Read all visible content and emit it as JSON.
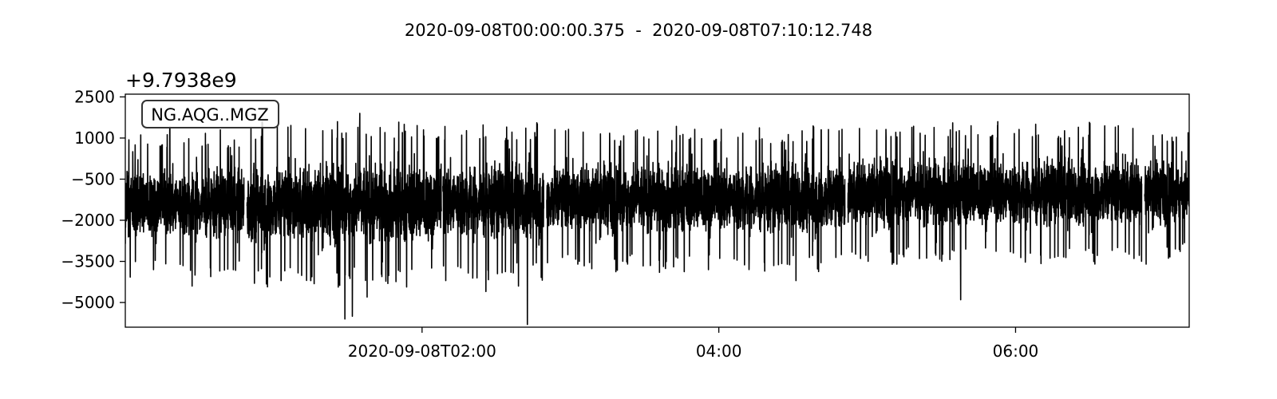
{
  "title": "2020-09-08T00:00:00.375  -  2020-09-08T07:10:12.748",
  "chart_data": {
    "type": "line",
    "title": "2020-09-08T00:00:00.375  -  2020-09-08T07:10:12.748",
    "trace_label": "NG.AQG..MGZ",
    "y_offset_label": "+9.7938e9",
    "xlabel": "",
    "ylabel": "",
    "x_start": "2020-09-08T00:00:00.375",
    "x_end": "2020-09-08T07:10:12.748",
    "xlim_hours": [
      0,
      7.1702
    ],
    "ylim": [
      -5900,
      2600
    ],
    "y_ticks": [
      2500,
      1000,
      -500,
      -2000,
      -3500,
      -5000
    ],
    "y_tick_labels": [
      "2500",
      "1000",
      "−500",
      "−2000",
      "−3500",
      "−5000"
    ],
    "x_ticks_hours": [
      2,
      4,
      6
    ],
    "x_tick_labels": [
      "2020-09-08T02:00",
      "04:00",
      "06:00"
    ],
    "series": [
      {
        "color": "#000000",
        "segments": [
          {
            "start_hour": 0.0,
            "end_hour": 0.8,
            "mean": -1400,
            "low": -3400,
            "high": 300
          },
          {
            "start_hour": 0.82,
            "end_hour": 2.13,
            "mean": -1400,
            "low": -3600,
            "high": 600
          },
          {
            "start_hour": 2.14,
            "end_hour": 2.82,
            "mean": -1300,
            "low": -3500,
            "high": 500
          },
          {
            "start_hour": 2.84,
            "end_hour": 4.85,
            "mean": -1200,
            "low": -3300,
            "high": 400
          },
          {
            "start_hour": 4.87,
            "end_hour": 6.85,
            "mean": -1000,
            "low": -3100,
            "high": 500
          },
          {
            "start_hour": 6.87,
            "end_hour": 7.17,
            "mean": -1000,
            "low": -2900,
            "high": 400
          }
        ],
        "spikes": [
          {
            "hour": 0.03,
            "value": -2600
          },
          {
            "hour": 0.05,
            "value": 500
          },
          {
            "hour": 0.19,
            "value": -3800
          },
          {
            "hour": 0.3,
            "value": 1400
          },
          {
            "hour": 0.45,
            "value": -4400
          },
          {
            "hour": 0.48,
            "value": 300
          },
          {
            "hour": 0.64,
            "value": 1300
          },
          {
            "hour": 0.87,
            "value": -4300
          },
          {
            "hour": 1.05,
            "value": -4200
          },
          {
            "hour": 1.25,
            "value": -4200
          },
          {
            "hour": 1.43,
            "value": 1600
          },
          {
            "hour": 1.48,
            "value": -5600
          },
          {
            "hour": 1.53,
            "value": -5500
          },
          {
            "hour": 1.58,
            "value": 1900
          },
          {
            "hour": 1.63,
            "value": -4800
          },
          {
            "hour": 1.75,
            "value": 1200
          },
          {
            "hour": 1.88,
            "value": 1500
          },
          {
            "hour": 2.01,
            "value": 1300
          },
          {
            "hour": 2.16,
            "value": -4200
          },
          {
            "hour": 2.37,
            "value": -4100
          },
          {
            "hour": 2.43,
            "value": -4600
          },
          {
            "hour": 2.57,
            "value": 1400
          },
          {
            "hour": 2.65,
            "value": -4400
          },
          {
            "hour": 2.71,
            "value": -5800
          },
          {
            "hour": 2.76,
            "value": 1200
          },
          {
            "hour": 3.05,
            "value": -3600
          },
          {
            "hour": 3.33,
            "value": 700
          },
          {
            "hour": 3.6,
            "value": -3900
          },
          {
            "hour": 3.81,
            "value": 1000
          },
          {
            "hour": 3.93,
            "value": -3800
          },
          {
            "hour": 4.35,
            "value": 800
          },
          {
            "hour": 4.52,
            "value": -4200
          },
          {
            "hour": 4.69,
            "value": 1300
          },
          {
            "hour": 5.2,
            "value": -3600
          },
          {
            "hour": 5.56,
            "value": 1300
          },
          {
            "hour": 5.63,
            "value": -4900
          },
          {
            "hour": 5.68,
            "value": 600
          },
          {
            "hour": 5.88,
            "value": 1600
          },
          {
            "hour": 6.1,
            "value": -3200
          },
          {
            "hour": 6.52,
            "value": -3200
          },
          {
            "hour": 6.74,
            "value": 400
          },
          {
            "hour": 6.88,
            "value": -3600
          },
          {
            "hour": 6.94,
            "value": 700
          },
          {
            "hour": 7.12,
            "value": 500
          }
        ]
      }
    ]
  }
}
